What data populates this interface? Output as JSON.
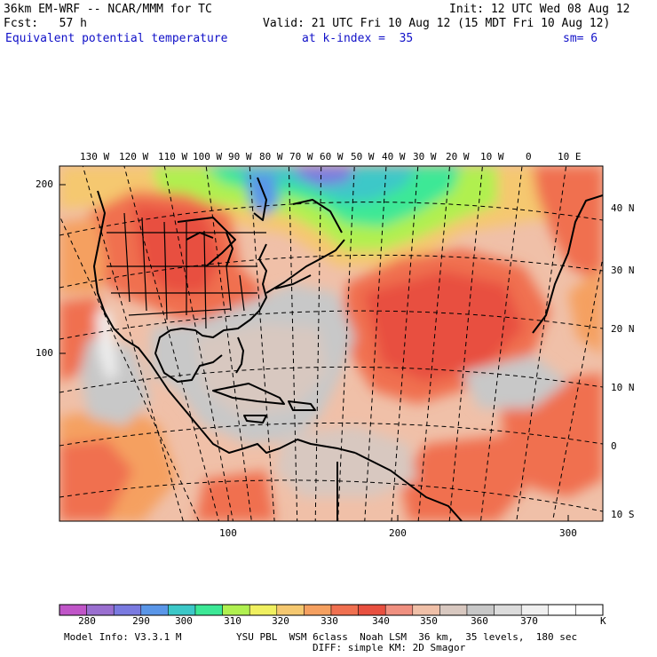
{
  "header": {
    "model": "36km EM-WRF -- NCAR/MMM for TC",
    "init": "Init: 12 UTC Wed 08 Aug 12",
    "fcst": "Fcst:   57 h",
    "valid": "Valid: 21 UTC Fri 10 Aug 12 (15 MDT Fri 10 Aug 12)",
    "field": "Equivalent potential temperature",
    "level": "at k-index =  35",
    "smooth": "sm= 6"
  },
  "map": {
    "top_lon_labels": [
      "130 W",
      "120 W",
      "110 W",
      "100 W",
      "90 W",
      "80 W",
      "70 W",
      "60 W",
      "50 W",
      "40 W",
      "30 W",
      "20 W",
      "10 W",
      "0",
      "10 E"
    ],
    "right_lat_labels": [
      "40 N",
      "30 N",
      "20 N",
      "10 N",
      "0",
      "10 S"
    ],
    "left_y_labels": [
      "200",
      "100"
    ],
    "bottom_x_labels": [
      "100",
      "200",
      "300"
    ]
  },
  "colorbar": {
    "unit": "K",
    "labels": [
      "280",
      "290",
      "300",
      "310",
      "320",
      "330",
      "340",
      "350",
      "360",
      "370"
    ],
    "colors": [
      "#c055c8",
      "#9a6fd0",
      "#7a7ae0",
      "#5a96e8",
      "#3cc8c8",
      "#3ce896",
      "#b0f050",
      "#f0f060",
      "#f5c870",
      "#f5a060",
      "#f07050",
      "#e85040",
      "#f09080",
      "#f0c0a8",
      "#d8c8c0",
      "#c8c8c8",
      "#dcdcdc",
      "#f0f0f0",
      "#ffffff",
      "#ffffff"
    ]
  },
  "footer": {
    "model_info": "Model Info: V3.3.1 M",
    "physics": "YSU PBL  WSM 6class  Noah LSM  36 km,  35 levels,  180 sec",
    "diff": "DIFF: simple KM: 2D Smagor"
  }
}
